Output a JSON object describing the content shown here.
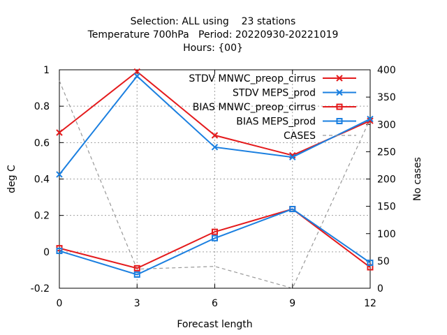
{
  "chart_data": {
    "type": "line",
    "title_lines": [
      "Selection: ALL using    23 stations",
      "Temperature 700hPa   Period: 20220930-20221019",
      "Hours: {00}"
    ],
    "xlabel": "Forecast length",
    "ylabel": "deg C",
    "y2label": "No cases",
    "x": [
      0,
      3,
      6,
      9,
      12
    ],
    "x_ticks": [
      "0",
      "3",
      "6",
      "9",
      "12"
    ],
    "xlim": [
      0,
      12
    ],
    "ylim": [
      -0.2,
      1.0
    ],
    "y_ticks": [
      "-0.2",
      "0",
      "0.2",
      "0.4",
      "0.6",
      "0.8",
      "1"
    ],
    "y2lim": [
      0,
      400
    ],
    "y2_ticks": [
      "0",
      "50",
      "100",
      "150",
      "200",
      "250",
      "300",
      "350",
      "400"
    ],
    "grid": true,
    "legend_position": "top-right",
    "series": [
      {
        "name": "STDV MNWC_preop_cirrus",
        "axis": "y",
        "values": [
          0.655,
          0.99,
          0.64,
          0.53,
          0.72
        ],
        "color": "#e41a1c",
        "marker": "x",
        "dash": "solid"
      },
      {
        "name": "STDV MEPS_prod",
        "axis": "y",
        "values": [
          0.425,
          0.965,
          0.575,
          0.52,
          0.73
        ],
        "color": "#1a7fe0",
        "marker": "x",
        "dash": "solid"
      },
      {
        "name": "BIAS MNWC_preop_cirrus",
        "axis": "y",
        "values": [
          0.02,
          -0.09,
          0.11,
          0.235,
          -0.085
        ],
        "color": "#e41a1c",
        "marker": "square",
        "dash": "solid"
      },
      {
        "name": "BIAS MEPS_prod",
        "axis": "y",
        "values": [
          0.005,
          -0.125,
          0.075,
          0.235,
          -0.06
        ],
        "color": "#1a7fe0",
        "marker": "square",
        "dash": "solid"
      },
      {
        "name": "CASES",
        "axis": "y2",
        "values": [
          380,
          35,
          40,
          0,
          310
        ],
        "color": "#999999",
        "marker": "none",
        "dash": "dashed"
      }
    ]
  }
}
